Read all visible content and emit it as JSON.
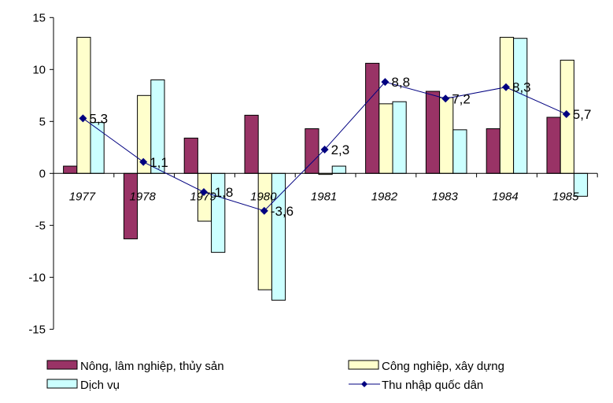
{
  "chart_data": {
    "type": "bar",
    "title": "",
    "xlabel": "",
    "ylabel": "",
    "ylim": [
      -15,
      15
    ],
    "yticks": [
      -15,
      -10,
      -5,
      0,
      5,
      10,
      15
    ],
    "grid": false,
    "legend_placement": "bottom",
    "categories": [
      "1977",
      "1978",
      "1979",
      "1980",
      "1981",
      "1982",
      "1983",
      "1984",
      "1985"
    ],
    "series": [
      {
        "name": "Nông, lâm nghiệp, thủy sản",
        "type": "bar",
        "color": "#993366",
        "values": [
          0.7,
          -6.3,
          3.4,
          5.6,
          4.3,
          10.6,
          7.9,
          4.3,
          5.4
        ]
      },
      {
        "name": "Công nghiệp, xây dựng",
        "type": "bar",
        "color": "#FFFFCC",
        "values": [
          13.1,
          7.5,
          -4.6,
          -11.2,
          -0.1,
          6.7,
          7.3,
          13.1,
          10.9
        ]
      },
      {
        "name": "Dịch vụ",
        "type": "bar",
        "color": "#CCFFFF",
        "values": [
          4.9,
          9.0,
          -7.6,
          -12.2,
          0.7,
          6.9,
          4.2,
          13.0,
          -2.2
        ]
      },
      {
        "name": "Thu nhập quốc dân",
        "type": "line",
        "color": "#000080",
        "values": [
          5.3,
          1.1,
          -1.8,
          -3.6,
          2.3,
          8.8,
          7.2,
          8.3,
          5.7
        ],
        "labels": [
          "5,3",
          "1,1",
          "-1,8",
          "-3,6",
          "2,3",
          "8,8",
          "7,2",
          "8,3",
          "5,7"
        ]
      }
    ]
  }
}
